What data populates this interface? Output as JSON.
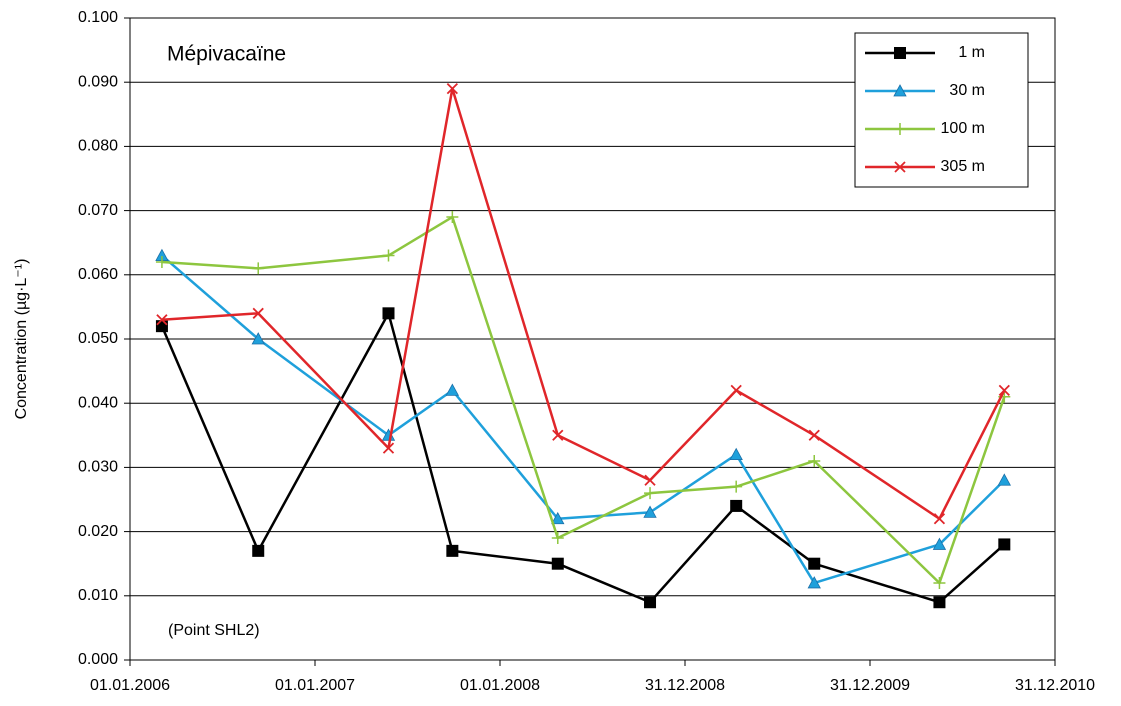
{
  "chart_data": {
    "type": "line",
    "annotations": [
      "Mépivacaïne",
      "(Point SHL2)"
    ],
    "y_label": "Concentration  (µg·L⁻¹)",
    "x": [
      "2006-03-05",
      "2006-09-11",
      "2007-05-26",
      "2007-09-29",
      "2008-04-24",
      "2008-10-23",
      "2009-04-11",
      "2009-09-12",
      "2010-05-17",
      "2010-09-22"
    ],
    "xlim": [
      "2006-01-01",
      "2010-12-31"
    ],
    "xticks": [
      {
        "value": "2006-01-01",
        "label": "01.01.2006"
      },
      {
        "value": "2007-01-01",
        "label": "01.01.2007"
      },
      {
        "value": "2008-01-01",
        "label": "01.01.2008"
      },
      {
        "value": "2008-12-31",
        "label": "31.12.2008"
      },
      {
        "value": "2009-12-31",
        "label": "31.12.2009"
      },
      {
        "value": "2010-12-31",
        "label": "31.12.2010"
      }
    ],
    "ylim": [
      0,
      0.1
    ],
    "yticks": [
      {
        "value": 0,
        "label": "0.000"
      },
      {
        "value": 0.01,
        "label": "0.010"
      },
      {
        "value": 0.02,
        "label": "0.020"
      },
      {
        "value": 0.03,
        "label": "0.030"
      },
      {
        "value": 0.04,
        "label": "0.040"
      },
      {
        "value": 0.05,
        "label": "0.050"
      },
      {
        "value": 0.06,
        "label": "0.060"
      },
      {
        "value": 0.07,
        "label": "0.070"
      },
      {
        "value": 0.08,
        "label": "0.080"
      },
      {
        "value": 0.09,
        "label": "0.090"
      },
      {
        "value": 0.1,
        "label": "0.100"
      }
    ],
    "grid": true,
    "legend": "top-right",
    "series": [
      {
        "name": "1 m",
        "color": "#000000",
        "marker": "square",
        "values": [
          0.052,
          0.017,
          0.054,
          0.017,
          0.015,
          0.009,
          0.024,
          0.015,
          0.009,
          0.018
        ]
      },
      {
        "name": "30 m",
        "color": "#1fa0db",
        "marker": "triangle",
        "values": [
          0.063,
          0.05,
          0.035,
          0.042,
          0.022,
          0.023,
          0.032,
          0.012,
          0.018,
          0.028
        ]
      },
      {
        "name": "100 m",
        "color": "#8dc63f",
        "marker": "plus",
        "values": [
          0.062,
          0.061,
          0.063,
          0.069,
          0.019,
          0.026,
          0.027,
          0.031,
          0.012,
          0.041
        ]
      },
      {
        "name": "305 m",
        "color": "#e0262a",
        "marker": "x",
        "values": [
          0.053,
          0.054,
          0.033,
          0.089,
          0.035,
          0.028,
          0.042,
          0.035,
          0.022,
          0.042
        ]
      }
    ]
  }
}
